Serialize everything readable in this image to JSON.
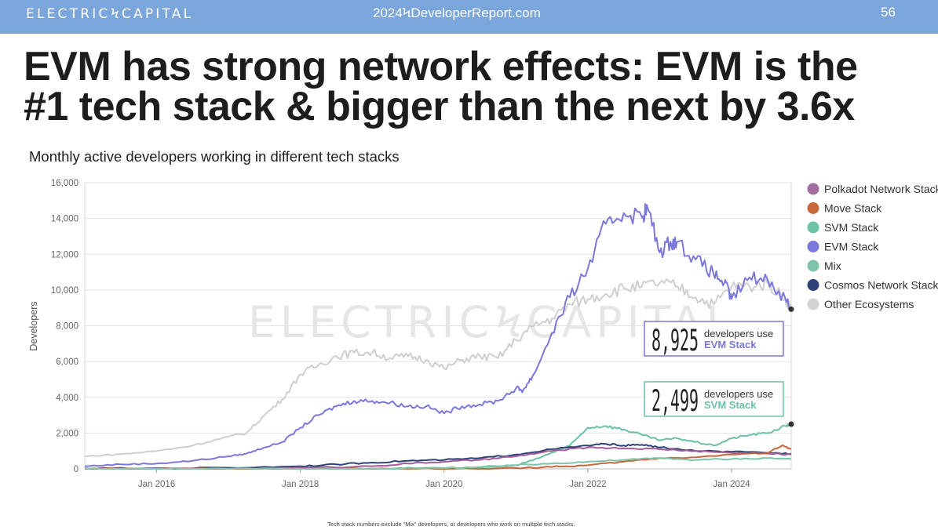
{
  "header": {
    "brand": "ELECTRICϞCAPITAL",
    "site": "2024ϞDeveloperReport.com",
    "page_number": "56"
  },
  "headline": "EVM has strong network effects: EVM is the #1 tech stack & bigger than the next by 3.6x",
  "chart_title": "Monthly active developers working in different tech stacks",
  "footnote": "Tech stack numbers exclude “Mix” developers, or developers who work on multiple tech stacks.",
  "chart_data": {
    "type": "line",
    "title": "Monthly active developers working in different tech stacks",
    "xlabel": "",
    "ylabel": "Developers",
    "ylim": [
      0,
      16000
    ],
    "yticks": [
      0,
      2000,
      4000,
      6000,
      8000,
      10000,
      12000,
      14000,
      16000
    ],
    "ytick_labels": [
      "0",
      "2,000",
      "4,000",
      "6,000",
      "8,000",
      "10,000",
      "12,000",
      "14,000",
      "16,000"
    ],
    "xlim": [
      2015.0,
      2024.83
    ],
    "xticks": [
      2016,
      2018,
      2020,
      2022,
      2024
    ],
    "xtick_labels": [
      "Jan 2016",
      "Jan 2018",
      "Jan 2020",
      "Jan 2022",
      "Jan 2024"
    ],
    "grid": true,
    "legend_position": "right",
    "watermark": "ELECTRICϞCAPITAL",
    "series": [
      {
        "name": "Other Ecosystems",
        "color": "#cfcfcf",
        "x": [
          2015.0,
          2015.5,
          2016.0,
          2016.5,
          2017.0,
          2017.25,
          2017.5,
          2017.75,
          2018.0,
          2018.25,
          2018.5,
          2018.75,
          2019.0,
          2019.25,
          2019.5,
          2019.75,
          2020.0,
          2020.25,
          2020.5,
          2020.75,
          2021.0,
          2021.25,
          2021.5,
          2021.75,
          2022.0,
          2022.25,
          2022.5,
          2022.75,
          2023.0,
          2023.25,
          2023.5,
          2023.75,
          2024.0,
          2024.25,
          2024.5,
          2024.75,
          2024.83
        ],
        "y": [
          700,
          820,
          1000,
          1300,
          1800,
          2000,
          3000,
          3900,
          5300,
          5800,
          6300,
          6500,
          6500,
          6200,
          6300,
          6100,
          5600,
          6100,
          6300,
          6200,
          7200,
          8000,
          8400,
          9200,
          9500,
          9800,
          10100,
          10200,
          10400,
          10200,
          9600,
          9200,
          10200,
          10200,
          10400,
          9500,
          9000
        ]
      },
      {
        "name": "EVM Stack",
        "color": "#7b78dc",
        "x": [
          2015.0,
          2015.5,
          2016.0,
          2016.5,
          2017.0,
          2017.25,
          2017.5,
          2017.75,
          2018.0,
          2018.25,
          2018.5,
          2018.75,
          2019.0,
          2019.25,
          2019.5,
          2019.75,
          2020.0,
          2020.25,
          2020.5,
          2020.75,
          2021.0,
          2021.1,
          2021.25,
          2021.5,
          2021.75,
          2022.0,
          2022.25,
          2022.5,
          2022.75,
          2022.83,
          2023.0,
          2023.15,
          2023.25,
          2023.5,
          2023.75,
          2023.9,
          2024.0,
          2024.25,
          2024.5,
          2024.75,
          2024.83
        ],
        "y": [
          150,
          250,
          300,
          450,
          700,
          850,
          1200,
          1500,
          2300,
          3000,
          3500,
          3800,
          3800,
          3700,
          3500,
          3500,
          3100,
          3500,
          3600,
          3800,
          4500,
          4400,
          5300,
          7600,
          9600,
          11200,
          13700,
          14300,
          14100,
          14600,
          12100,
          12700,
          12700,
          11700,
          10900,
          10400,
          9500,
          10700,
          10600,
          9500,
          8925
        ]
      },
      {
        "name": "SVM Stack",
        "color": "#6cc0a5",
        "x": [
          2015.0,
          2016.0,
          2017.0,
          2018.0,
          2019.0,
          2020.0,
          2020.5,
          2021.0,
          2021.25,
          2021.5,
          2021.75,
          2022.0,
          2022.25,
          2022.5,
          2022.75,
          2023.0,
          2023.25,
          2023.5,
          2023.75,
          2024.0,
          2024.25,
          2024.5,
          2024.75,
          2024.83
        ],
        "y": [
          0,
          0,
          0,
          0,
          0,
          20,
          50,
          200,
          500,
          900,
          1300,
          2300,
          2400,
          2200,
          1900,
          1600,
          1700,
          1500,
          1300,
          1700,
          1900,
          2000,
          2400,
          2499
        ]
      },
      {
        "name": "Cosmos Network Stack",
        "color": "#2e4278",
        "x": [
          2015.0,
          2016.0,
          2017.0,
          2018.0,
          2018.5,
          2019.0,
          2019.5,
          2020.0,
          2020.5,
          2021.0,
          2021.5,
          2022.0,
          2022.25,
          2022.5,
          2022.75,
          2023.0,
          2023.5,
          2024.0,
          2024.5,
          2024.83
        ],
        "y": [
          20,
          30,
          60,
          150,
          250,
          350,
          450,
          500,
          600,
          800,
          1100,
          1300,
          1400,
          1300,
          1350,
          1200,
          1000,
          950,
          900,
          850
        ]
      },
      {
        "name": "Polkadot Network Stack",
        "color": "#a45c9a",
        "x": [
          2015.0,
          2016.0,
          2017.0,
          2018.0,
          2019.0,
          2019.5,
          2020.0,
          2020.5,
          2021.0,
          2021.5,
          2022.0,
          2022.5,
          2023.0,
          2023.5,
          2024.0,
          2024.5,
          2024.83
        ],
        "y": [
          0,
          0,
          0,
          50,
          150,
          300,
          400,
          500,
          700,
          1000,
          1200,
          1150,
          1100,
          1000,
          900,
          850,
          800
        ]
      },
      {
        "name": "Move Stack",
        "color": "#c8683c",
        "x": [
          2015.0,
          2016.0,
          2017.0,
          2018.0,
          2019.0,
          2020.0,
          2021.0,
          2021.5,
          2022.0,
          2022.5,
          2023.0,
          2023.5,
          2024.0,
          2024.5,
          2024.7,
          2024.83
        ],
        "y": [
          0,
          0,
          0,
          0,
          0,
          0,
          50,
          100,
          200,
          400,
          600,
          650,
          800,
          900,
          1300,
          1100
        ]
      },
      {
        "name": "Mix",
        "color": "#7fc4a8",
        "x": [
          2015.0,
          2016.0,
          2017.0,
          2018.0,
          2019.0,
          2020.0,
          2020.5,
          2021.0,
          2021.5,
          2022.0,
          2022.5,
          2023.0,
          2023.5,
          2024.0,
          2024.5,
          2024.83
        ],
        "y": [
          0,
          0,
          0,
          0,
          20,
          50,
          100,
          200,
          300,
          400,
          500,
          600,
          500,
          550,
          600,
          550
        ]
      }
    ],
    "legend": [
      {
        "name": "Polkadot Network Stack",
        "color": "#a36c9f"
      },
      {
        "name": "Move Stack",
        "color": "#c8683c"
      },
      {
        "name": "SVM Stack",
        "color": "#6fc4a5"
      },
      {
        "name": "EVM Stack",
        "color": "#7b78dc"
      },
      {
        "name": "Mix",
        "color": "#7fc4a8"
      },
      {
        "name": "Cosmos Network Stack",
        "color": "#2e4278"
      },
      {
        "name": "Other Ecosystems",
        "color": "#d2d2d2"
      }
    ],
    "annotations": [
      {
        "value": "8,925",
        "text": "developers use",
        "series": "EVM Stack",
        "color": "#7b78dc"
      },
      {
        "value": "2,499",
        "text": "developers use",
        "series": "SVM Stack",
        "color": "#6cc0a5"
      }
    ]
  }
}
